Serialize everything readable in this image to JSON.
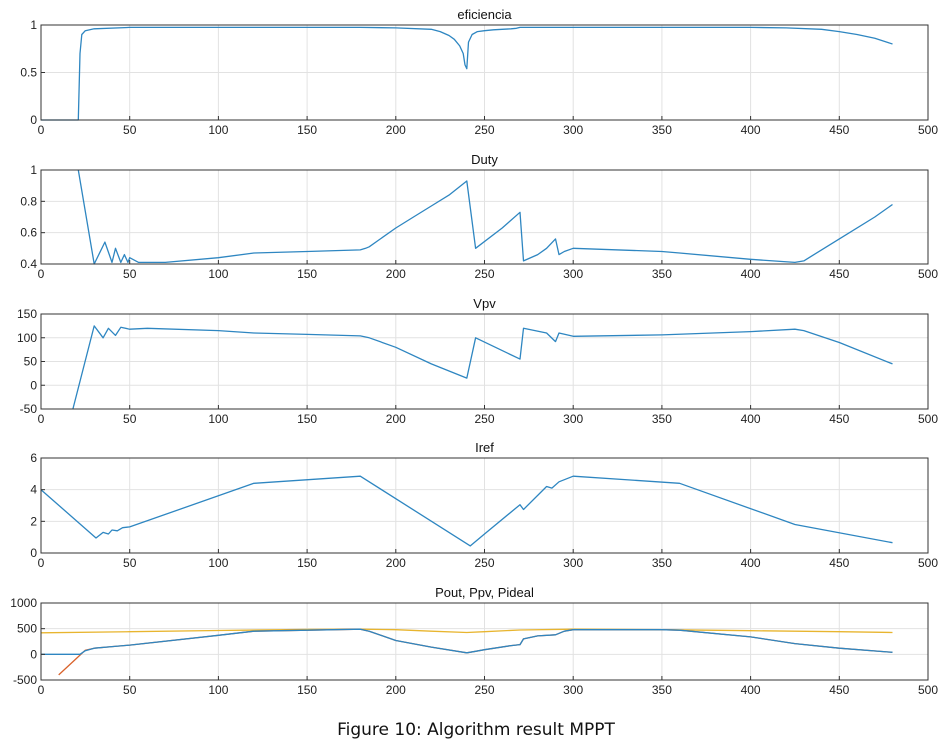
{
  "caption": "Figure 10: Algorithm result MPPT",
  "colors": {
    "blue": "#2e86c1",
    "orange": "#d9622b",
    "yellow": "#e8b52f",
    "grid": "#e2e2e2",
    "axis": "#333333"
  },
  "chart_data": [
    {
      "type": "line",
      "title": "eficiencia",
      "xlim": [
        0,
        500
      ],
      "xticks": [
        0,
        50,
        100,
        150,
        200,
        250,
        300,
        350,
        400,
        450,
        500
      ],
      "ylim": [
        0,
        1
      ],
      "yticks": [
        0,
        0.5,
        1
      ],
      "yticklabels": [
        "0",
        "0.5",
        "1"
      ],
      "grid": true,
      "series": [
        {
          "color": "blue",
          "x": [
            0,
            21,
            22,
            23,
            25,
            30,
            50,
            100,
            180,
            200,
            220,
            225,
            230,
            233,
            236,
            238,
            239,
            240,
            241,
            243,
            246,
            250,
            255,
            260,
            265,
            268,
            270,
            275,
            280,
            300,
            350,
            400,
            420,
            440,
            450,
            460,
            470,
            480
          ],
          "y": [
            0,
            0,
            0.7,
            0.9,
            0.94,
            0.96,
            0.975,
            0.975,
            0.975,
            0.97,
            0.955,
            0.93,
            0.89,
            0.85,
            0.78,
            0.7,
            0.58,
            0.54,
            0.82,
            0.9,
            0.93,
            0.94,
            0.95,
            0.955,
            0.96,
            0.965,
            0.975,
            0.975,
            0.975,
            0.975,
            0.975,
            0.975,
            0.97,
            0.955,
            0.93,
            0.9,
            0.86,
            0.8
          ]
        }
      ]
    },
    {
      "type": "line",
      "title": "Duty",
      "xlim": [
        0,
        500
      ],
      "xticks": [
        0,
        50,
        100,
        150,
        200,
        250,
        300,
        350,
        400,
        450,
        500
      ],
      "ylim": [
        0.4,
        1
      ],
      "yticks": [
        0.4,
        0.6,
        0.8,
        1
      ],
      "yticklabels": [
        "0.4",
        "0.6",
        "0.8",
        "1"
      ],
      "grid": true,
      "series": [
        {
          "color": "blue",
          "x": [
            21,
            30,
            36,
            40,
            42,
            45,
            47,
            49,
            50,
            55,
            70,
            100,
            120,
            150,
            180,
            183,
            185,
            190,
            200,
            210,
            220,
            230,
            240,
            245,
            260,
            270,
            272,
            280,
            285,
            290,
            292,
            295,
            300,
            350,
            360,
            400,
            425,
            430,
            450,
            470,
            480
          ],
          "y": [
            1,
            0.4,
            0.54,
            0.41,
            0.5,
            0.41,
            0.46,
            0.41,
            0.44,
            0.41,
            0.41,
            0.44,
            0.47,
            0.48,
            0.49,
            0.5,
            0.51,
            0.55,
            0.63,
            0.7,
            0.77,
            0.84,
            0.93,
            0.5,
            0.63,
            0.73,
            0.42,
            0.46,
            0.5,
            0.56,
            0.46,
            0.48,
            0.5,
            0.48,
            0.47,
            0.43,
            0.41,
            0.42,
            0.56,
            0.7,
            0.78
          ]
        }
      ]
    },
    {
      "type": "line",
      "title": "Vpv",
      "xlim": [
        0,
        500
      ],
      "xticks": [
        0,
        50,
        100,
        150,
        200,
        250,
        300,
        350,
        400,
        450,
        500
      ],
      "ylim": [
        -50,
        150
      ],
      "yticks": [
        -50,
        0,
        50,
        100,
        150
      ],
      "yticklabels": [
        "-50",
        "0",
        "50",
        "100",
        "150"
      ],
      "grid": true,
      "series": [
        {
          "color": "blue",
          "x": [
            18,
            30,
            35,
            38,
            42,
            45,
            50,
            60,
            100,
            120,
            150,
            180,
            185,
            200,
            220,
            240,
            245,
            270,
            272,
            285,
            290,
            292,
            300,
            350,
            400,
            425,
            430,
            450,
            480
          ],
          "y": [
            -50,
            125,
            100,
            120,
            105,
            122,
            118,
            120,
            115,
            110,
            107,
            104,
            100,
            80,
            45,
            15,
            100,
            55,
            120,
            110,
            92,
            110,
            103,
            106,
            113,
            118,
            115,
            90,
            45
          ]
        }
      ]
    },
    {
      "type": "line",
      "title": "Iref",
      "xlim": [
        0,
        500
      ],
      "xticks": [
        0,
        50,
        100,
        150,
        200,
        250,
        300,
        350,
        400,
        450,
        500
      ],
      "ylim": [
        0,
        6
      ],
      "yticks": [
        0,
        2,
        4,
        6
      ],
      "yticklabels": [
        "0",
        "2",
        "4",
        "6"
      ],
      "grid": true,
      "series": [
        {
          "color": "blue",
          "x": [
            0,
            31,
            35,
            38,
            40,
            43,
            46,
            50,
            120,
            180,
            242,
            250,
            270,
            272,
            285,
            288,
            292,
            300,
            360,
            425,
            480
          ],
          "y": [
            4,
            0.95,
            1.3,
            1.2,
            1.45,
            1.4,
            1.6,
            1.65,
            4.4,
            4.85,
            0.45,
            1.2,
            3.05,
            2.75,
            4.2,
            4.1,
            4.5,
            4.85,
            4.4,
            1.8,
            0.65
          ]
        }
      ]
    },
    {
      "type": "line",
      "title": "Pout, Ppv, Pideal",
      "xlim": [
        0,
        500
      ],
      "xticks": [
        0,
        50,
        100,
        150,
        200,
        250,
        300,
        350,
        400,
        450,
        500
      ],
      "ylim": [
        -500,
        1000
      ],
      "yticks": [
        -500,
        0,
        500,
        1000
      ],
      "yticklabels": [
        "-500",
        "0",
        "500",
        "1000"
      ],
      "grid": true,
      "series": [
        {
          "color": "yellow",
          "x": [
            0,
            50,
            100,
            150,
            180,
            200,
            220,
            240,
            250,
            270,
            300,
            350,
            400,
            450,
            480
          ],
          "y": [
            420,
            440,
            465,
            485,
            490,
            480,
            450,
            425,
            440,
            475,
            490,
            480,
            460,
            440,
            425
          ]
        },
        {
          "color": "orange",
          "x": [
            10,
            20,
            25,
            30,
            40,
            50,
            100,
            120,
            180,
            185,
            200,
            220,
            240,
            245,
            250,
            265,
            270,
            272,
            280,
            290,
            295,
            300,
            350,
            360,
            400,
            425,
            450,
            480
          ],
          "y": [
            -400,
            -80,
            80,
            120,
            150,
            180,
            370,
            450,
            490,
            450,
            270,
            140,
            30,
            60,
            90,
            170,
            190,
            300,
            360,
            380,
            450,
            480,
            480,
            470,
            340,
            210,
            120,
            40
          ]
        },
        {
          "color": "blue",
          "x": [
            0,
            22,
            25,
            30,
            40,
            50,
            100,
            120,
            180,
            185,
            200,
            220,
            240,
            245,
            250,
            265,
            270,
            272,
            280,
            290,
            295,
            300,
            350,
            360,
            400,
            425,
            450,
            480
          ],
          "y": [
            0,
            0,
            70,
            120,
            150,
            180,
            370,
            450,
            490,
            450,
            270,
            140,
            30,
            60,
            90,
            170,
            190,
            300,
            360,
            380,
            450,
            480,
            480,
            470,
            340,
            210,
            120,
            40
          ]
        }
      ]
    }
  ]
}
